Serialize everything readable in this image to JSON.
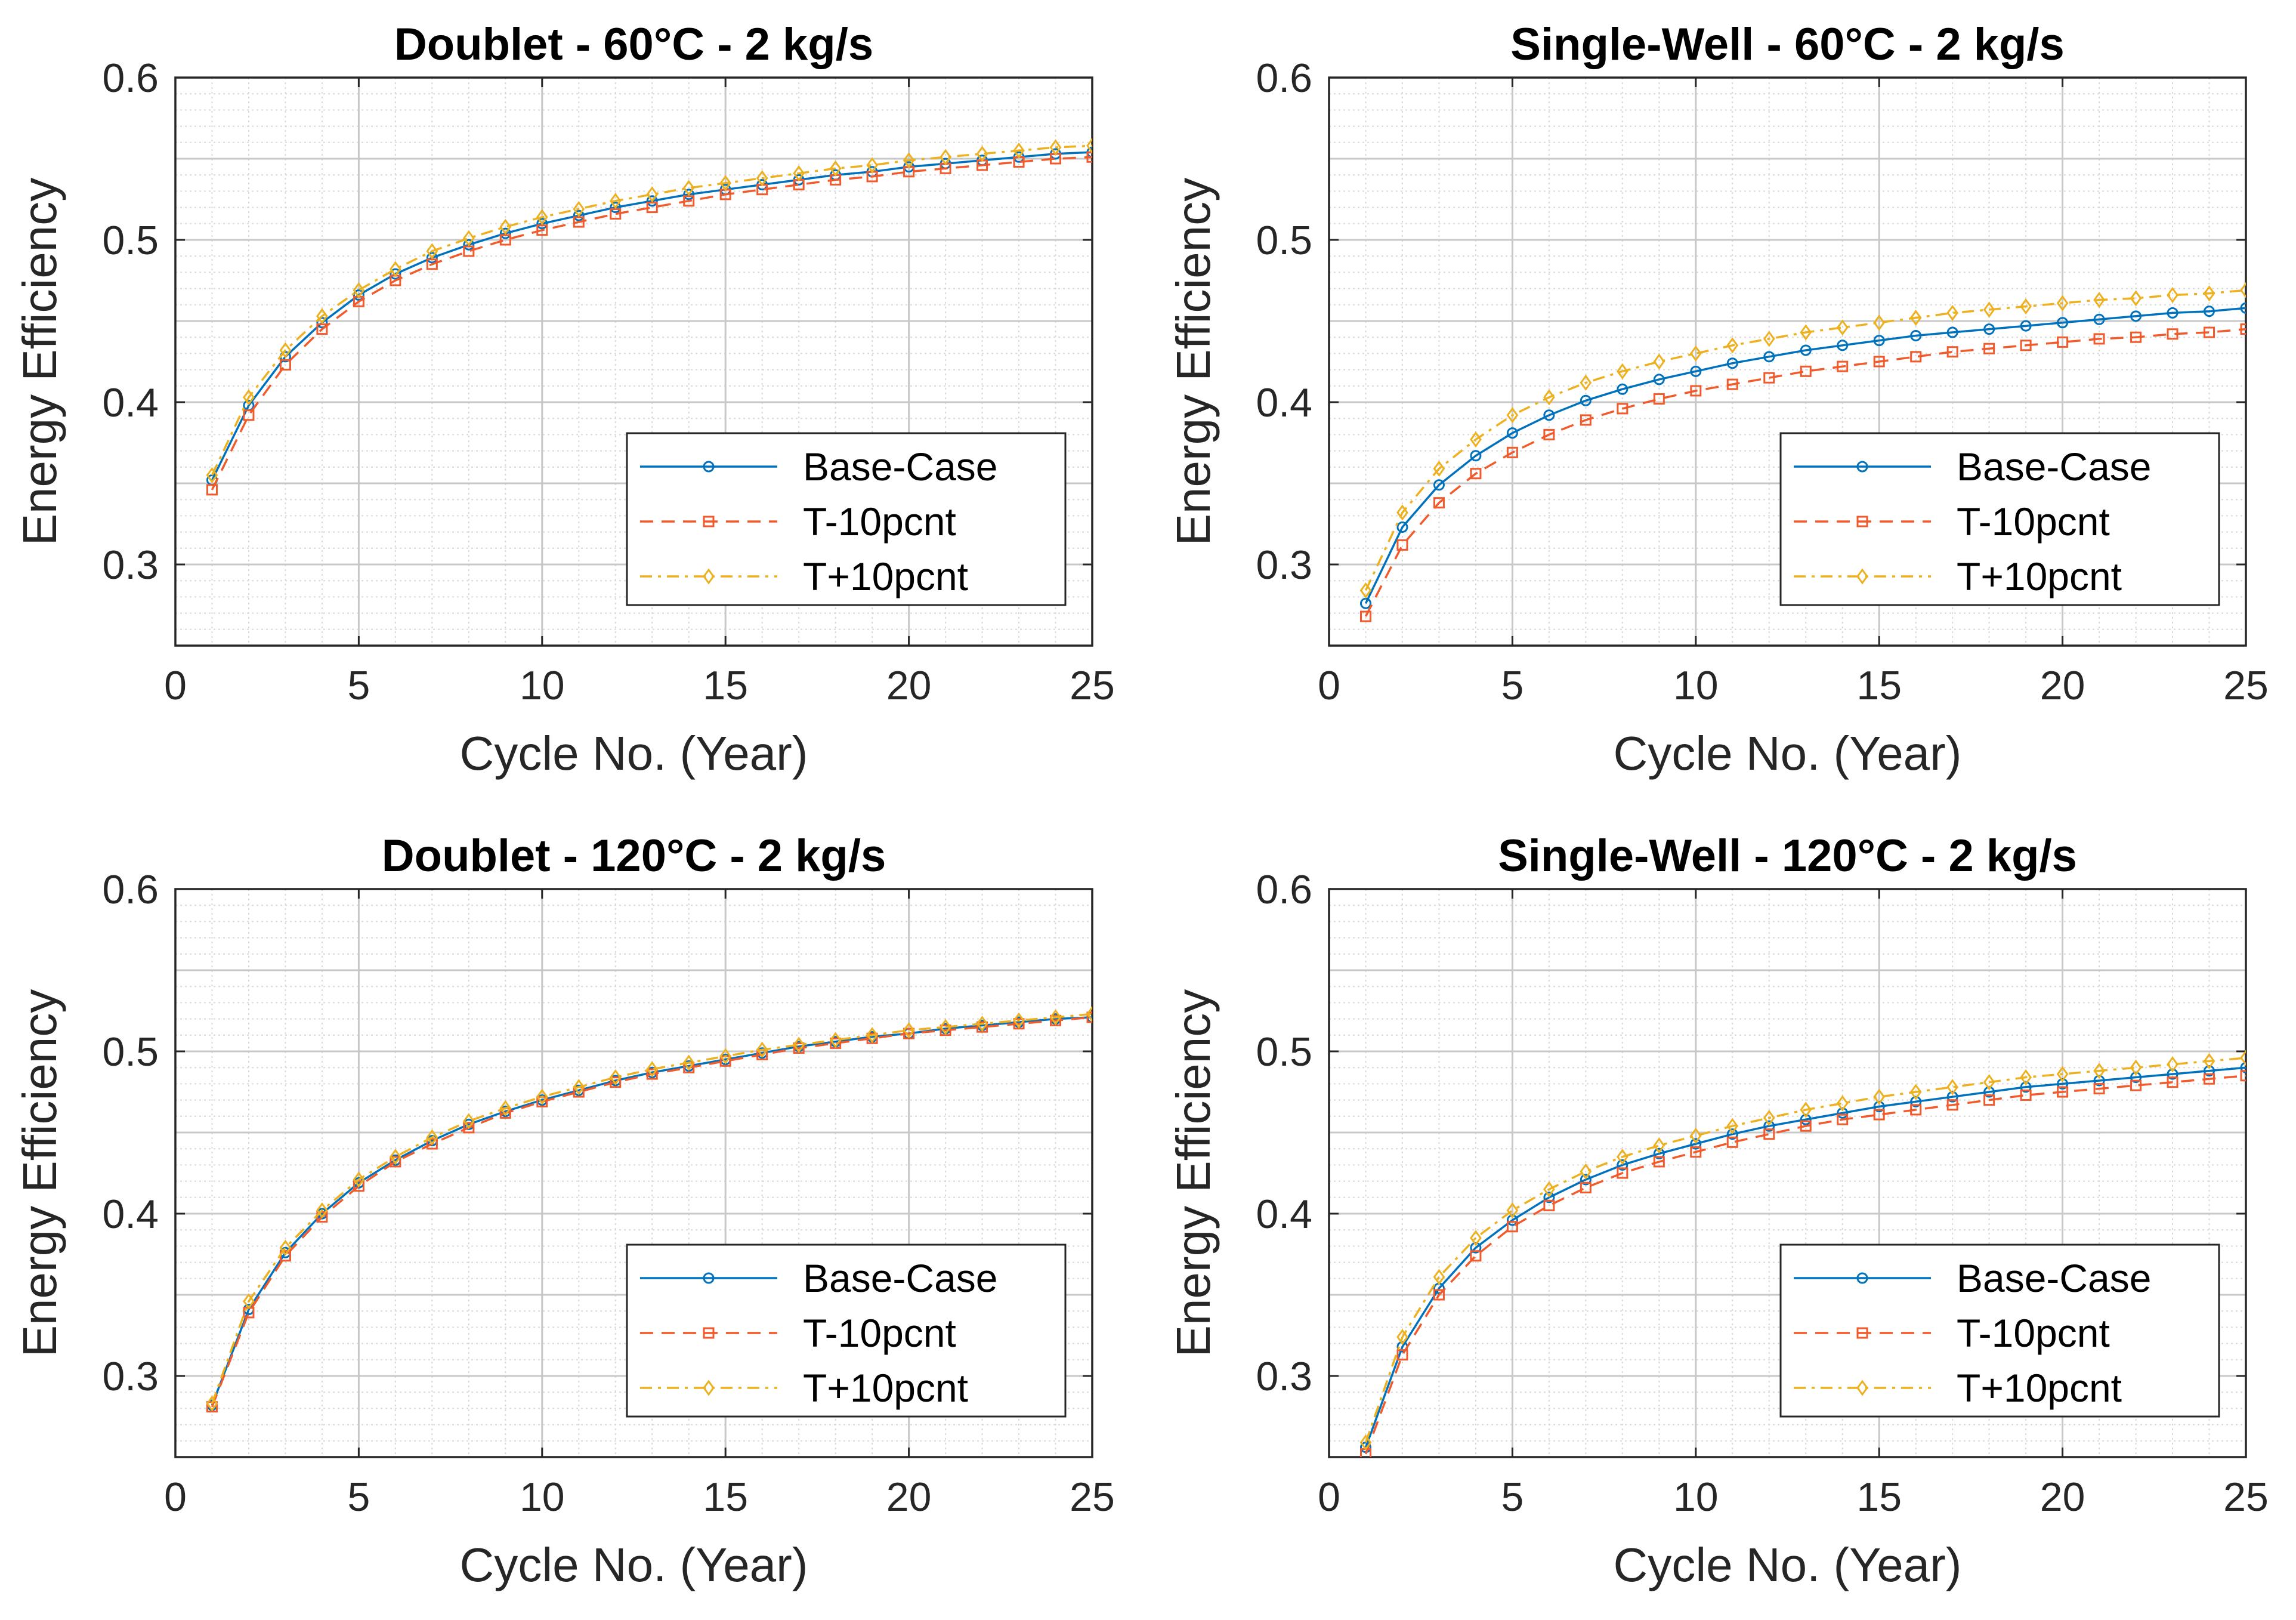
{
  "colors": {
    "base": "#0072BD",
    "minus": "#F15A2B",
    "plus": "#EDB120",
    "grid": "#D9D9D9",
    "axis": "#262626"
  },
  "chart_data": [
    {
      "type": "line",
      "title": "Doublet - 60°C - 2 kg/s",
      "xlabel": "Cycle No. (Year)",
      "ylabel": "Energy Efficiency",
      "xlim": [
        0,
        25
      ],
      "ylim": [
        0.25,
        0.6
      ],
      "xticks": [
        "0",
        "5",
        "10",
        "15",
        "20",
        "25"
      ],
      "yticks": [
        "0.3",
        "0.4",
        "0.5",
        "0.6"
      ],
      "grid": true,
      "minor_grid": true,
      "legend_position": "lower-right",
      "x": [
        1,
        2,
        3,
        4,
        5,
        6,
        7,
        8,
        9,
        10,
        11,
        12,
        13,
        14,
        15,
        16,
        17,
        18,
        19,
        20,
        21,
        22,
        23,
        24,
        25
      ],
      "series": [
        {
          "name": "Base-Case",
          "marker": "circle",
          "dash": "solid",
          "values": [
            0.352,
            0.398,
            0.428,
            0.449,
            0.466,
            0.479,
            0.489,
            0.497,
            0.504,
            0.51,
            0.515,
            0.52,
            0.524,
            0.528,
            0.531,
            0.534,
            0.537,
            0.54,
            0.542,
            0.545,
            0.547,
            0.549,
            0.551,
            0.553,
            0.554
          ]
        },
        {
          "name": "T-10pcnt",
          "marker": "square",
          "dash": "dashed",
          "values": [
            0.346,
            0.392,
            0.423,
            0.445,
            0.462,
            0.475,
            0.485,
            0.493,
            0.5,
            0.506,
            0.511,
            0.516,
            0.52,
            0.524,
            0.528,
            0.531,
            0.534,
            0.537,
            0.539,
            0.542,
            0.544,
            0.546,
            0.548,
            0.55,
            0.551
          ]
        },
        {
          "name": "T+10pcnt",
          "marker": "diamond",
          "dash": "dashdot",
          "values": [
            0.355,
            0.403,
            0.432,
            0.453,
            0.469,
            0.482,
            0.493,
            0.501,
            0.508,
            0.514,
            0.519,
            0.524,
            0.528,
            0.532,
            0.535,
            0.538,
            0.541,
            0.544,
            0.546,
            0.549,
            0.551,
            0.553,
            0.555,
            0.557,
            0.558
          ]
        }
      ]
    },
    {
      "type": "line",
      "title": "Single-Well - 60°C - 2 kg/s",
      "xlabel": "Cycle No. (Year)",
      "ylabel": "Energy Efficiency",
      "xlim": [
        0,
        25
      ],
      "ylim": [
        0.25,
        0.6
      ],
      "xticks": [
        "0",
        "5",
        "10",
        "15",
        "20",
        "25"
      ],
      "yticks": [
        "0.3",
        "0.4",
        "0.5",
        "0.6"
      ],
      "grid": true,
      "minor_grid": true,
      "legend_position": "lower-right",
      "x": [
        1,
        2,
        3,
        4,
        5,
        6,
        7,
        8,
        9,
        10,
        11,
        12,
        13,
        14,
        15,
        16,
        17,
        18,
        19,
        20,
        21,
        22,
        23,
        24,
        25
      ],
      "series": [
        {
          "name": "Base-Case",
          "marker": "circle",
          "dash": "solid",
          "values": [
            0.276,
            0.323,
            0.349,
            0.367,
            0.381,
            0.392,
            0.401,
            0.408,
            0.414,
            0.419,
            0.424,
            0.428,
            0.432,
            0.435,
            0.438,
            0.441,
            0.443,
            0.445,
            0.447,
            0.449,
            0.451,
            0.453,
            0.455,
            0.456,
            0.458
          ]
        },
        {
          "name": "T-10pcnt",
          "marker": "square",
          "dash": "dashed",
          "values": [
            0.268,
            0.312,
            0.338,
            0.356,
            0.369,
            0.38,
            0.389,
            0.396,
            0.402,
            0.407,
            0.411,
            0.415,
            0.419,
            0.422,
            0.425,
            0.428,
            0.431,
            0.433,
            0.435,
            0.437,
            0.439,
            0.44,
            0.442,
            0.443,
            0.445
          ]
        },
        {
          "name": "T+10pcnt",
          "marker": "diamond",
          "dash": "dashdot",
          "values": [
            0.284,
            0.332,
            0.359,
            0.377,
            0.392,
            0.403,
            0.412,
            0.419,
            0.425,
            0.43,
            0.435,
            0.439,
            0.443,
            0.446,
            0.449,
            0.452,
            0.455,
            0.457,
            0.459,
            0.461,
            0.463,
            0.464,
            0.466,
            0.467,
            0.469
          ]
        }
      ]
    },
    {
      "type": "line",
      "title": "Doublet - 120°C - 2 kg/s",
      "xlabel": "Cycle No. (Year)",
      "ylabel": "Energy Efficiency",
      "xlim": [
        0,
        25
      ],
      "ylim": [
        0.25,
        0.6
      ],
      "xticks": [
        "0",
        "5",
        "10",
        "15",
        "20",
        "25"
      ],
      "yticks": [
        "0.3",
        "0.4",
        "0.5",
        "0.6"
      ],
      "grid": true,
      "minor_grid": true,
      "legend_position": "lower-right",
      "x": [
        1,
        2,
        3,
        4,
        5,
        6,
        7,
        8,
        9,
        10,
        11,
        12,
        13,
        14,
        15,
        16,
        17,
        18,
        19,
        20,
        21,
        22,
        23,
        24,
        25
      ],
      "series": [
        {
          "name": "Base-Case",
          "marker": "circle",
          "dash": "solid",
          "values": [
            0.282,
            0.341,
            0.376,
            0.4,
            0.419,
            0.433,
            0.445,
            0.455,
            0.463,
            0.47,
            0.476,
            0.482,
            0.487,
            0.491,
            0.495,
            0.499,
            0.503,
            0.506,
            0.509,
            0.511,
            0.514,
            0.516,
            0.518,
            0.52,
            0.521
          ]
        },
        {
          "name": "T-10pcnt",
          "marker": "square",
          "dash": "dashed",
          "values": [
            0.281,
            0.339,
            0.374,
            0.398,
            0.417,
            0.432,
            0.443,
            0.453,
            0.462,
            0.469,
            0.475,
            0.481,
            0.486,
            0.49,
            0.494,
            0.498,
            0.502,
            0.505,
            0.508,
            0.511,
            0.513,
            0.515,
            0.517,
            0.519,
            0.521
          ]
        },
        {
          "name": "T+10pcnt",
          "marker": "diamond",
          "dash": "dashdot",
          "values": [
            0.283,
            0.346,
            0.379,
            0.402,
            0.421,
            0.435,
            0.447,
            0.457,
            0.465,
            0.472,
            0.478,
            0.484,
            0.489,
            0.493,
            0.497,
            0.501,
            0.504,
            0.507,
            0.51,
            0.513,
            0.515,
            0.517,
            0.519,
            0.521,
            0.523
          ]
        }
      ]
    },
    {
      "type": "line",
      "title": "Single-Well - 120°C - 2 kg/s",
      "xlabel": "Cycle No. (Year)",
      "ylabel": "Energy Efficiency",
      "xlim": [
        0,
        25
      ],
      "ylim": [
        0.25,
        0.6
      ],
      "xticks": [
        "0",
        "5",
        "10",
        "15",
        "20",
        "25"
      ],
      "yticks": [
        "0.3",
        "0.4",
        "0.5",
        "0.6"
      ],
      "grid": true,
      "minor_grid": true,
      "legend_position": "lower-right",
      "x": [
        1,
        2,
        3,
        4,
        5,
        6,
        7,
        8,
        9,
        10,
        11,
        12,
        13,
        14,
        15,
        16,
        17,
        18,
        19,
        20,
        21,
        22,
        23,
        24,
        25
      ],
      "series": [
        {
          "name": "Base-Case",
          "marker": "circle",
          "dash": "solid",
          "values": [
            0.256,
            0.318,
            0.354,
            0.379,
            0.396,
            0.41,
            0.421,
            0.43,
            0.437,
            0.443,
            0.449,
            0.454,
            0.458,
            0.462,
            0.466,
            0.469,
            0.472,
            0.475,
            0.478,
            0.48,
            0.482,
            0.484,
            0.486,
            0.488,
            0.49
          ]
        },
        {
          "name": "T-10pcnt",
          "marker": "square",
          "dash": "dashed",
          "values": [
            0.252,
            0.313,
            0.35,
            0.374,
            0.392,
            0.405,
            0.416,
            0.425,
            0.432,
            0.438,
            0.444,
            0.449,
            0.454,
            0.458,
            0.461,
            0.464,
            0.467,
            0.47,
            0.473,
            0.475,
            0.477,
            0.479,
            0.481,
            0.483,
            0.485
          ]
        },
        {
          "name": "T+10pcnt",
          "marker": "diamond",
          "dash": "dashdot",
          "values": [
            0.259,
            0.324,
            0.361,
            0.385,
            0.402,
            0.415,
            0.426,
            0.435,
            0.442,
            0.448,
            0.454,
            0.459,
            0.464,
            0.468,
            0.472,
            0.475,
            0.478,
            0.481,
            0.484,
            0.486,
            0.488,
            0.49,
            0.492,
            0.494,
            0.496
          ]
        }
      ]
    }
  ]
}
